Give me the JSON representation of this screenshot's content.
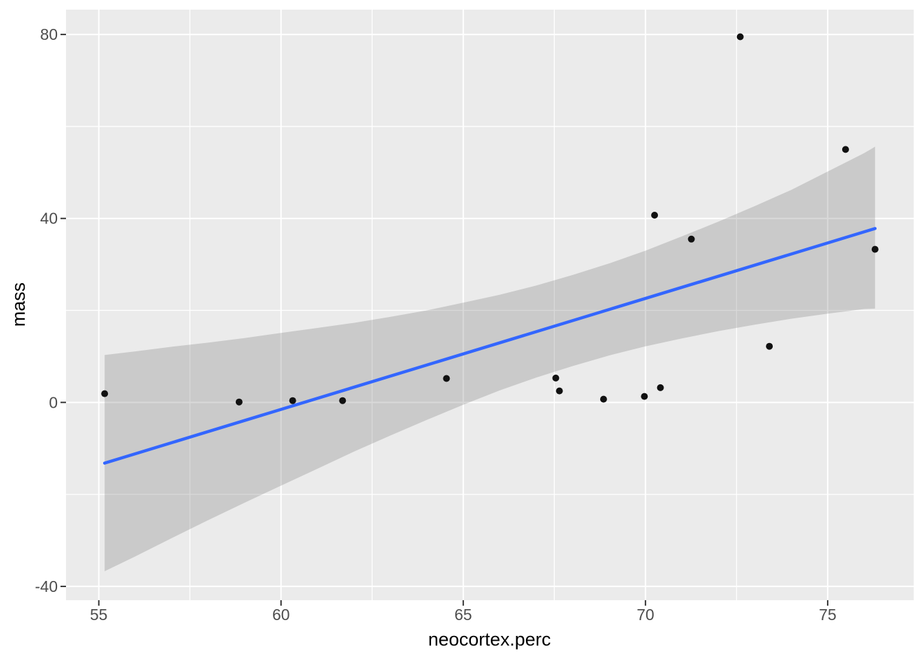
{
  "figure": {
    "x_axis_title": "neocortex.perc",
    "y_axis_title": "mass"
  },
  "chart_data": {
    "type": "scatter",
    "title": "",
    "xlabel": "neocortex.perc",
    "ylabel": "mass",
    "xlim": [
      54.1,
      77.36
    ],
    "ylim": [
      -43.0,
      85.4
    ],
    "x_major_ticks": [
      55,
      60,
      65,
      70,
      75
    ],
    "x_minor_ticks": [
      57.5,
      62.5,
      67.5,
      72.5
    ],
    "y_major_ticks": [
      -40,
      0,
      40,
      80
    ],
    "y_minor_ticks": [
      -20,
      20,
      60
    ],
    "grid": true,
    "legend": "none",
    "points": [
      [
        55.16,
        1.9
      ],
      [
        58.85,
        0.1
      ],
      [
        60.32,
        0.4
      ],
      [
        61.69,
        0.4
      ],
      [
        64.54,
        5.2
      ],
      [
        67.54,
        5.3
      ],
      [
        67.64,
        2.5
      ],
      [
        68.85,
        0.7
      ],
      [
        69.97,
        1.3
      ],
      [
        70.41,
        3.2
      ],
      [
        70.25,
        40.7
      ],
      [
        71.26,
        35.5
      ],
      [
        72.6,
        79.5
      ],
      [
        73.4,
        12.2
      ],
      [
        75.49,
        55.0
      ],
      [
        76.3,
        33.3
      ]
    ],
    "regression_line": {
      "x": [
        55.16,
        76.3
      ],
      "y": [
        -13.2,
        37.8
      ]
    },
    "ribbon": [
      [
        55.16,
        -36.7,
        10.3
      ],
      [
        56.0,
        -33.5,
        11.1
      ],
      [
        57.0,
        -29.5,
        12.1
      ],
      [
        58.0,
        -25.6,
        13.0
      ],
      [
        59.0,
        -21.8,
        14.0
      ],
      [
        60.0,
        -18.1,
        15.1
      ],
      [
        61.0,
        -14.4,
        16.2
      ],
      [
        62.0,
        -10.7,
        17.3
      ],
      [
        63.0,
        -7.2,
        18.6
      ],
      [
        64.0,
        -3.8,
        20.0
      ],
      [
        65.0,
        -0.5,
        21.7
      ],
      [
        66.0,
        2.6,
        23.4
      ],
      [
        67.0,
        5.4,
        25.4
      ],
      [
        68.0,
        7.9,
        27.7
      ],
      [
        69.0,
        10.2,
        30.2
      ],
      [
        70.0,
        12.2,
        33.0
      ],
      [
        71.0,
        13.9,
        36.1
      ],
      [
        72.0,
        15.5,
        39.3
      ],
      [
        73.0,
        16.9,
        42.7
      ],
      [
        74.0,
        18.2,
        46.2
      ],
      [
        75.0,
        19.3,
        50.2
      ],
      [
        76.0,
        20.3,
        54.2
      ],
      [
        76.3,
        20.4,
        55.6
      ]
    ],
    "colors": {
      "panel_background": "#EBEBEB",
      "grid_line": "#FFFFFF",
      "ribbon_fill": "rgba(102,102,102,0.25)",
      "regression_line": "#3366FF",
      "point": "#111111",
      "tick_mark": "#333333",
      "tick_label": "#4D4D4D",
      "axis_title": "#000000"
    }
  }
}
